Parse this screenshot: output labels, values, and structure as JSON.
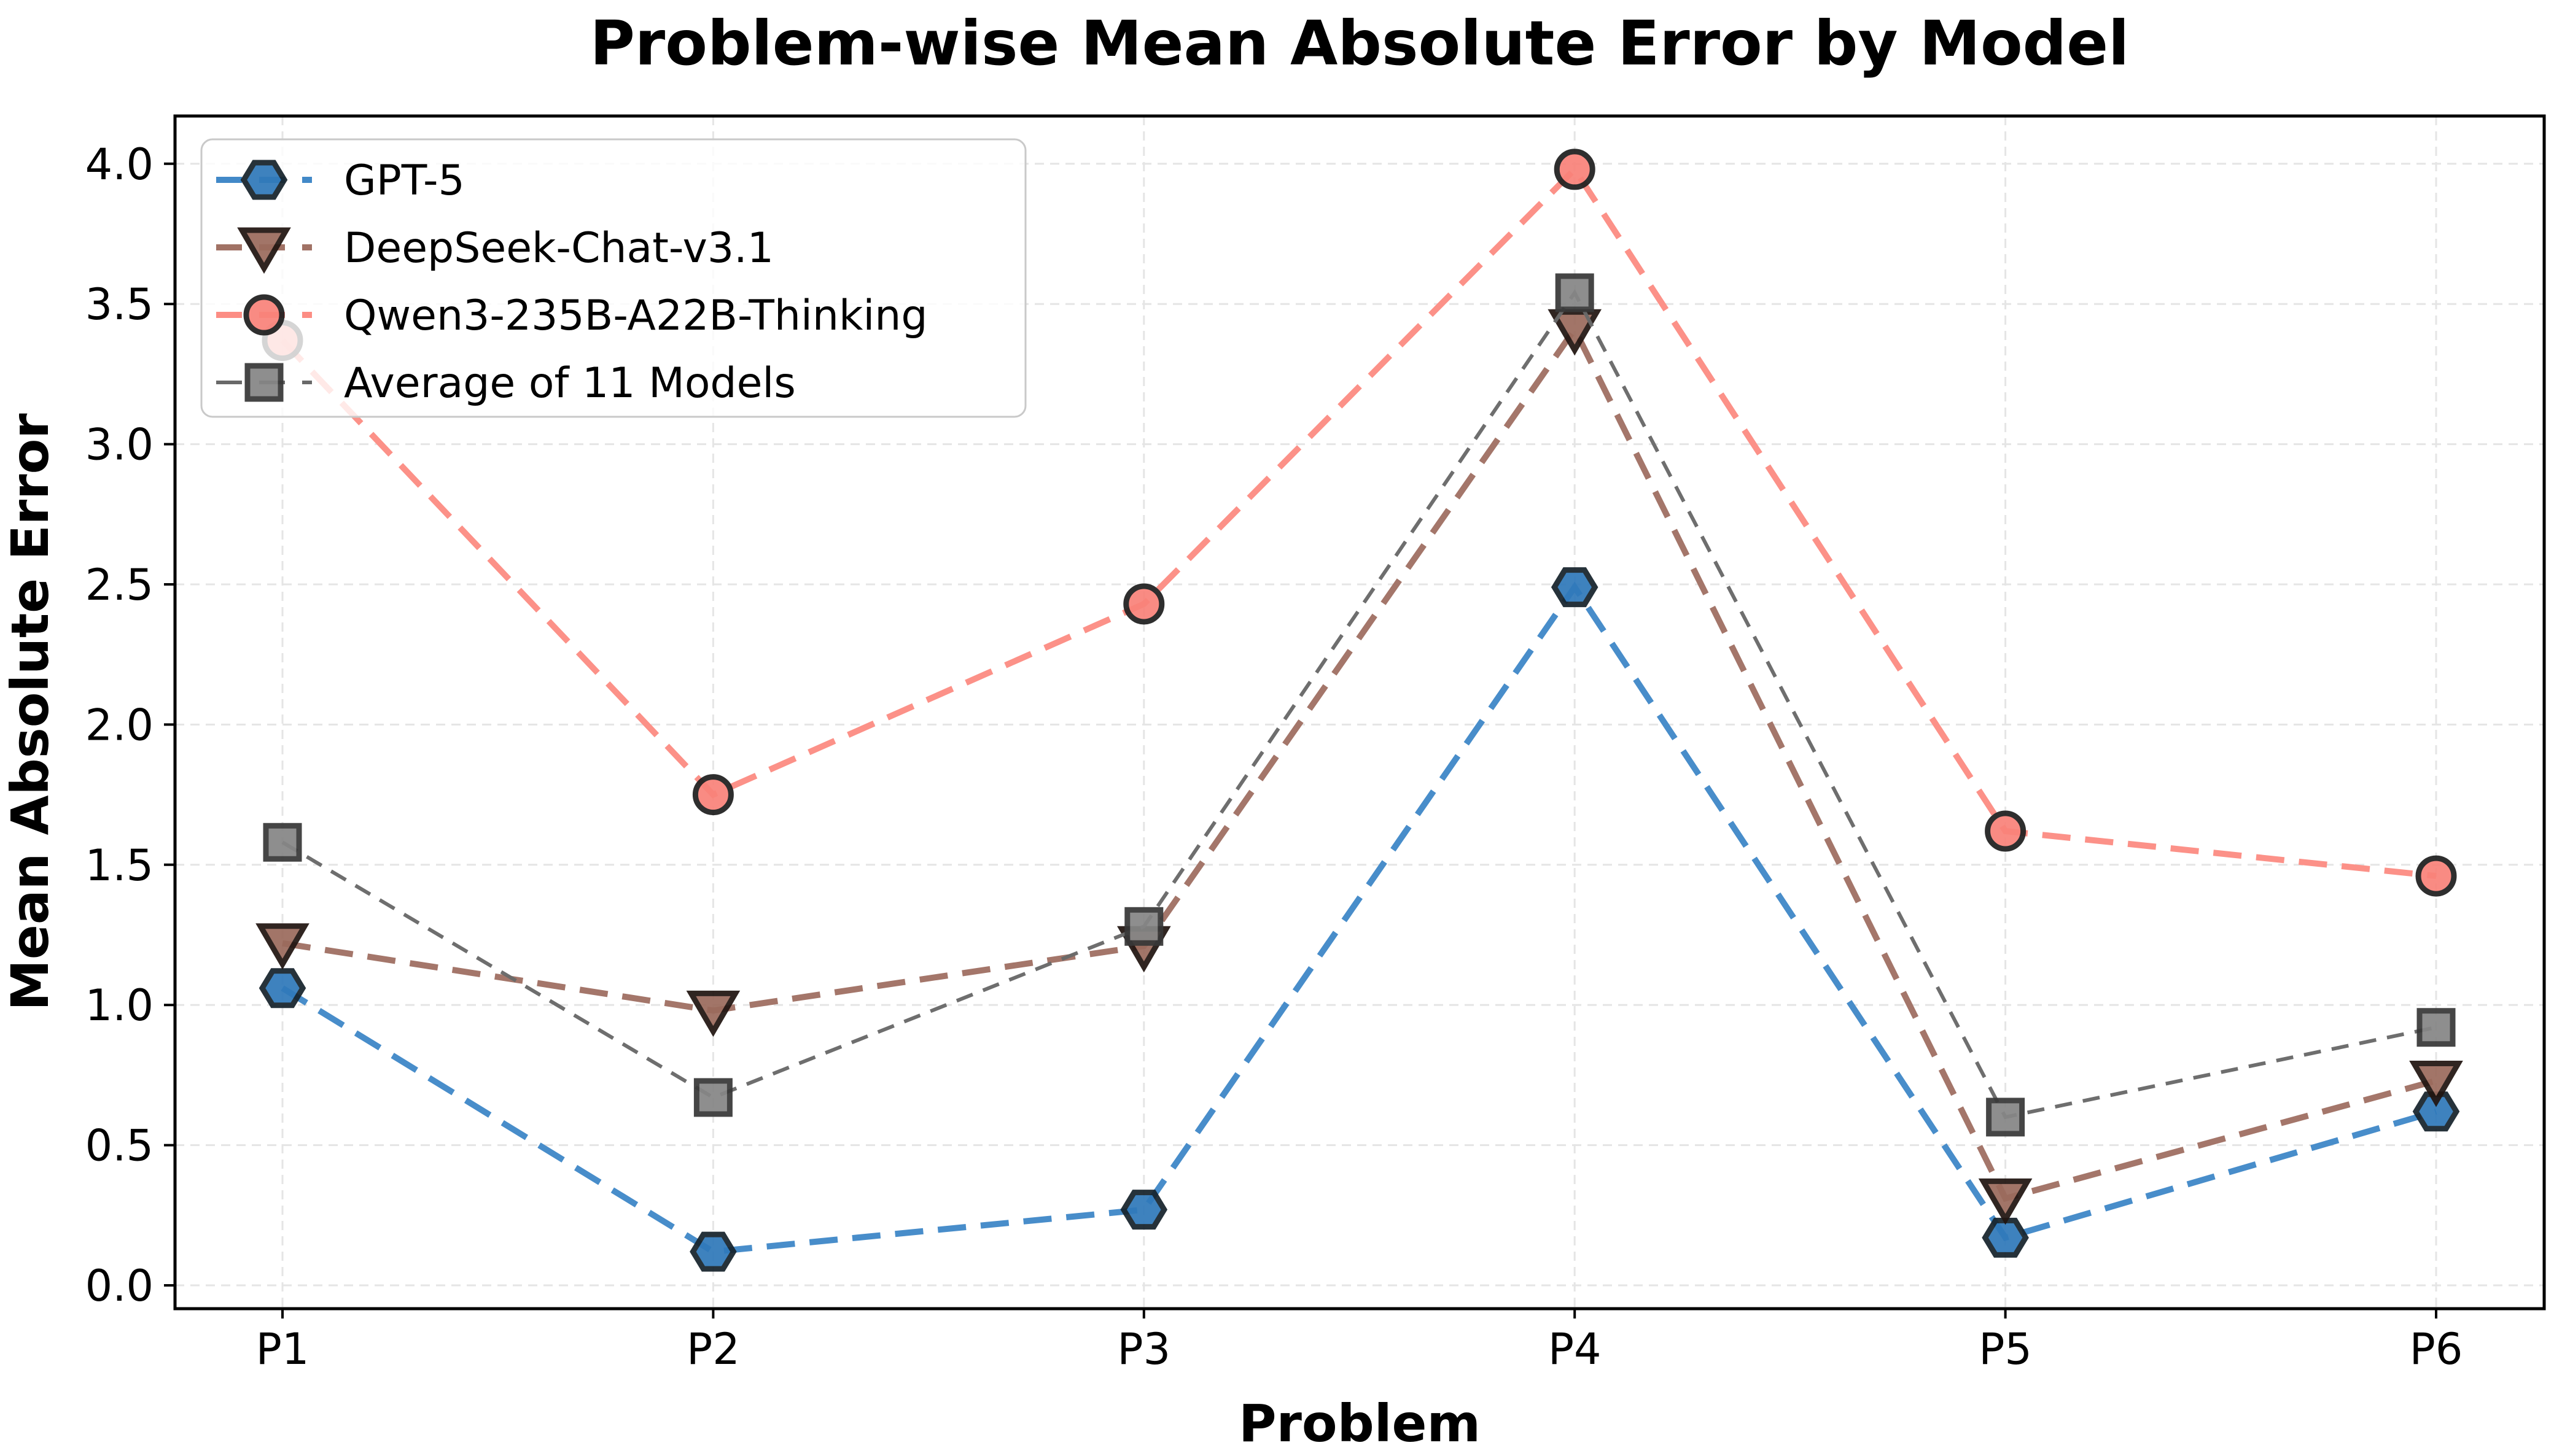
{
  "title": "Problem-wise Mean Absolute Error by Model",
  "axes": {
    "x_tick_labels": [
      "P1",
      "P2",
      "P3",
      "P4",
      "P5",
      "P6"
    ],
    "y_tick_labels": [
      "0.0",
      "0.5",
      "1.0",
      "1.5",
      "2.0",
      "2.5",
      "3.0",
      "3.5",
      "4.0"
    ]
  },
  "chart_data": {
    "type": "line",
    "title": "Problem-wise Mean Absolute Error by Model",
    "xlabel": "Problem",
    "ylabel": "Mean Absolute Error",
    "categories": [
      "P1",
      "P2",
      "P3",
      "P4",
      "P5",
      "P6"
    ],
    "ylim": [
      -0.09,
      4.17
    ],
    "y_tick_step": 0.5,
    "grid": true,
    "grid_color": "#e5e5e5",
    "legend_position": "upper-left",
    "legend_border_color": "#c9c9c9",
    "series": [
      {
        "name": "GPT-5",
        "marker": "hexagon",
        "values": [
          1.06,
          0.12,
          0.27,
          2.49,
          0.17,
          0.62
        ],
        "line_color": "#4289c8",
        "marker_color": "#3079ba",
        "marker_edge_color": "#16232c",
        "line_width": 10,
        "dash": [
          46,
          24
        ]
      },
      {
        "name": "DeepSeek-Chat-v3.1",
        "marker": "triangle-down",
        "values": [
          1.22,
          0.98,
          1.21,
          3.41,
          0.31,
          0.73
        ],
        "line_color": "#a17265",
        "marker_color": "#9b6b5d",
        "marker_edge_color": "#211511",
        "line_width": 10,
        "dash": [
          46,
          24
        ]
      },
      {
        "name": "Qwen3-235B-A22B-Thinking",
        "marker": "circle",
        "values": [
          3.37,
          1.75,
          2.43,
          3.98,
          1.62,
          1.46
        ],
        "line_color": "#fc8d84",
        "marker_color": "#f9837a",
        "marker_edge_color": "#1f1f1f",
        "line_width": 10,
        "dash": [
          46,
          24
        ]
      },
      {
        "name": "Average of 11 Models",
        "marker": "square",
        "values": [
          1.58,
          0.67,
          1.28,
          3.54,
          0.6,
          0.92
        ],
        "line_color": "#696969",
        "marker_color": "#868686",
        "marker_edge_color": "#383838",
        "line_width": 6,
        "dash": [
          28,
          18
        ]
      }
    ]
  }
}
